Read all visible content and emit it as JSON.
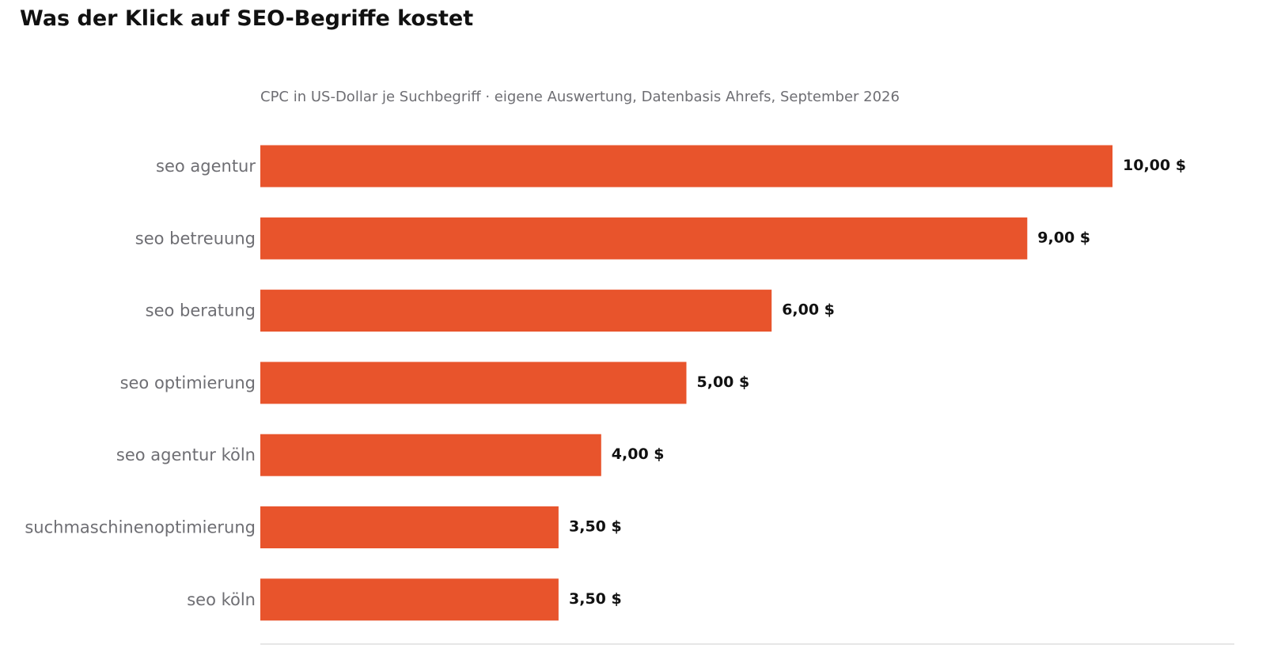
{
  "chart_data": {
    "type": "bar",
    "orientation": "horizontal",
    "title": "Was der Klick auf SEO-Begriffe kostet",
    "subtitle": "CPC in US-Dollar je Suchbegriff · eigene Auswertung, Datenbasis Ahrefs, September 2026",
    "xlabel": "",
    "ylabel": "",
    "xlim": [
      0,
      10
    ],
    "grid": false,
    "categories": [
      "seo agentur",
      "seo betreuung",
      "seo beratung",
      "seo optimierung",
      "seo agentur köln",
      "suchmaschinenoptimierung",
      "seo köln"
    ],
    "values": [
      10.0,
      9.0,
      6.0,
      5.0,
      4.0,
      3.5,
      3.5
    ],
    "value_labels": [
      "10,00 $",
      "9,00 $",
      "6,00 $",
      "5,00 $",
      "4,00 $",
      "3,50 $",
      "3,50 $"
    ],
    "bar_color": "#e8542c",
    "label_color": "#6e6e73",
    "value_label_color": "#111111"
  }
}
